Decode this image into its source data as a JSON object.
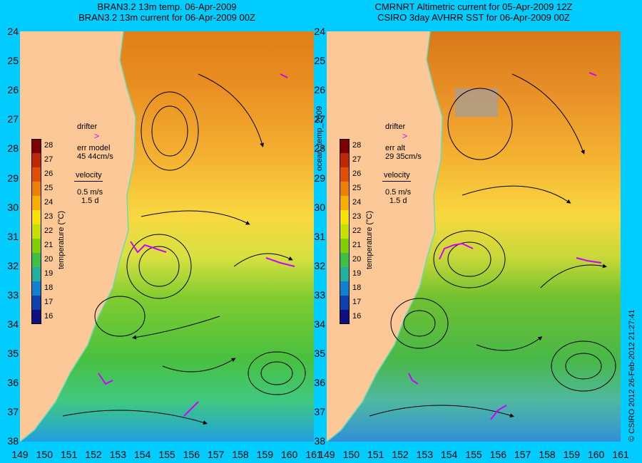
{
  "left_title": [
    "BRAN3.2 13m temp. 06-Apr-2009",
    "BRAN3.2 13m current for 06-Apr-2009 00Z"
  ],
  "right_title": [
    "CMRNRT Altimetric current for 05-Apr-2009 12Z",
    "CSIRO 3day AVHRR SST for 06-Apr-2009 00Z"
  ],
  "y_ticks": [
    "24",
    "25",
    "26",
    "27",
    "28",
    "29",
    "30",
    "31",
    "32",
    "33",
    "34",
    "35",
    "36",
    "37",
    "38"
  ],
  "x_ticks_left": [
    "149",
    "150",
    "151",
    "152",
    "153",
    "154",
    "155",
    "156",
    "157",
    "158",
    "159",
    "160",
    "161"
  ],
  "x_ticks_right": [
    "149",
    "150",
    "151",
    "152",
    "153",
    "154",
    "155",
    "156",
    "157",
    "158",
    "159",
    "160",
    "161"
  ],
  "colorbar": {
    "label": "temperature (°C)",
    "ticks": [
      "28",
      "27",
      "26",
      "25",
      "24",
      "23",
      "22",
      "21",
      "20",
      "19",
      "18",
      "17",
      "16"
    ],
    "colors": [
      "#800000",
      "#c02800",
      "#e05000",
      "#f08000",
      "#f8b000",
      "#f8e000",
      "#c8e000",
      "#80d000",
      "#40c040",
      "#20b0a0",
      "#1080d0",
      "#1040b0",
      "#101080"
    ]
  },
  "legend_left": {
    "drifter": "drifter",
    "err_label": "err model",
    "err_value": "45 44cm/s",
    "velocity": "velocity",
    "speed": "0.5 m/s",
    "days": "1.5 d"
  },
  "legend_right": {
    "drifter": "drifter",
    "err_label": "err alt",
    "err_value": "29 35cm/s",
    "velocity": "velocity",
    "speed": "0.5 m/s",
    "days": "1.5 d"
  },
  "mid_label": "ocean_temp_2009",
  "credit": "© CSIRO 2012   26-Feb-2012 21:27:41",
  "colors": {
    "background": "#00ccff",
    "land": "#fcc898",
    "arrow_color": "#000000",
    "drifter": "#cc00ff",
    "coast": "#66ddbb"
  }
}
